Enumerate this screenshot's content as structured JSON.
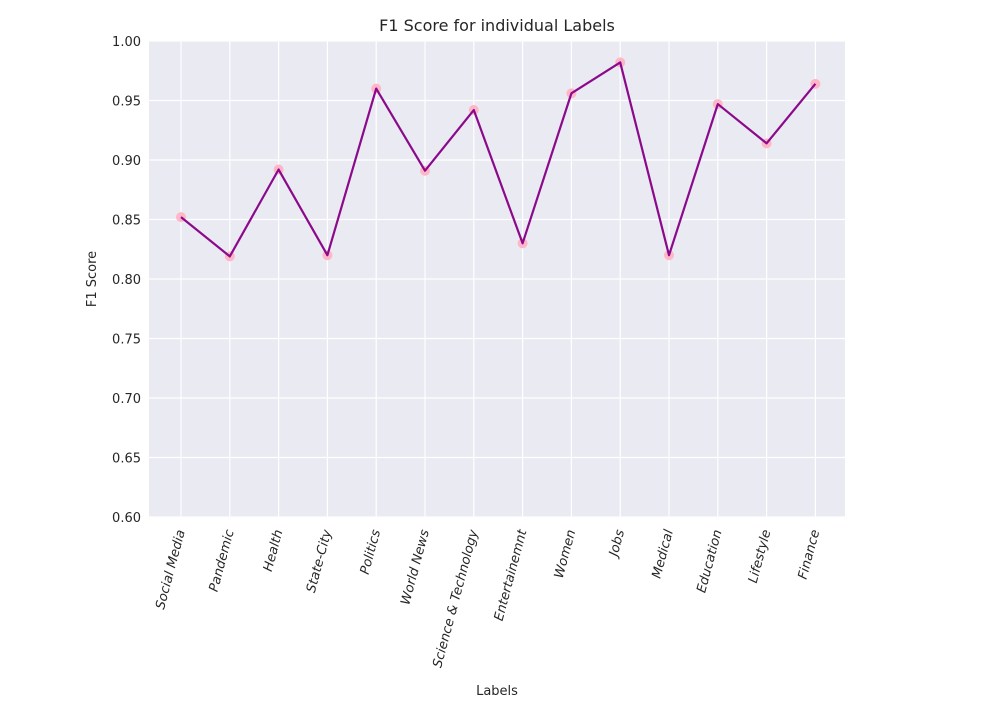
{
  "chart_data": {
    "type": "line",
    "title": "F1 Score for individual Labels",
    "xlabel": "Labels",
    "ylabel": "F1 Score",
    "ylim": [
      0.6,
      1.0
    ],
    "yticks": [
      "0.60",
      "0.65",
      "0.70",
      "0.75",
      "0.80",
      "0.85",
      "0.90",
      "0.95",
      "1.00"
    ],
    "grid": true,
    "categories": [
      "Social Media",
      "Pandemic",
      "Health",
      "State-City",
      "Politics",
      "World News",
      "Science & Technology",
      "Entertainemnt",
      "Women",
      "Jobs",
      "Medical",
      "Education",
      "Lifestyle",
      "Finance"
    ],
    "series": [
      {
        "values": [
          0.852,
          0.819,
          0.892,
          0.82,
          0.96,
          0.891,
          0.942,
          0.83,
          0.956,
          0.982,
          0.82,
          0.947,
          0.914,
          0.964
        ]
      }
    ],
    "colors": {
      "line": "#8b0a8b",
      "marker": "#ffb6c8",
      "plot_background": "#eaeaf2",
      "grid": "#ffffff"
    }
  }
}
